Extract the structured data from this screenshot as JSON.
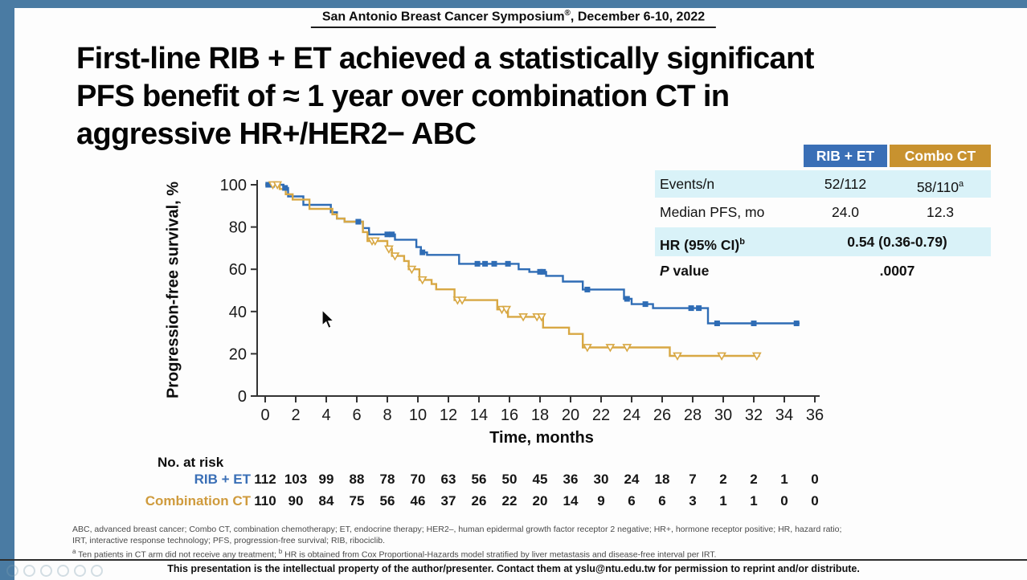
{
  "header": {
    "text_main": "San Antonio Breast Cancer Symposium",
    "text_sup": "®",
    "text_rest": ", December 6-10, 2022"
  },
  "title": {
    "lines": [
      "First-line RIB + ET achieved a statistically significant",
      "PFS benefit of ≈ 1 year over combination CT in",
      "aggressive HR+/HER2− ABC"
    ]
  },
  "stats_table": {
    "columns": [
      {
        "label": "RIB + ET",
        "color": "#3a6fb6"
      },
      {
        "label": "Combo CT",
        "color": "#c8922f"
      }
    ],
    "rows": [
      {
        "label": "Events/n",
        "v1": "52/112",
        "v2": "58/110",
        "v2_sup": "a"
      },
      {
        "label": "Median PFS, mo",
        "v1": "24.0",
        "v2": "12.3"
      },
      {
        "label": "HR (95% CI)",
        "label_sup": "b",
        "span": "0.54 (0.36-0.79)"
      },
      {
        "label_italic": "P",
        "label": " value",
        "span": ".0007"
      }
    ]
  },
  "chart_data": {
    "type": "line",
    "subtype": "kaplan-meier-step",
    "title": "",
    "xlabel": "Time, months",
    "ylabel": "Progression-free survival, %",
    "xlim": [
      0,
      36
    ],
    "ylim": [
      0,
      100
    ],
    "xticks": [
      0,
      2,
      4,
      6,
      8,
      10,
      12,
      14,
      16,
      18,
      20,
      22,
      24,
      26,
      28,
      30,
      32,
      34,
      36
    ],
    "yticks": [
      0,
      20,
      40,
      60,
      80,
      100
    ],
    "grid": false,
    "legend_position": "none",
    "series": [
      {
        "name": "RIB + ET",
        "color": "#2e6cb5",
        "marker": "filled-square",
        "median_pfs_months": 24.0,
        "steps": [
          [
            0,
            100
          ],
          [
            1.2,
            100
          ],
          [
            1.2,
            98.5
          ],
          [
            1.5,
            98.5
          ],
          [
            1.5,
            94.5
          ],
          [
            2.5,
            94.5
          ],
          [
            2.5,
            90.5
          ],
          [
            4.3,
            90.5
          ],
          [
            4.3,
            87
          ],
          [
            4.7,
            87
          ],
          [
            4.7,
            84
          ],
          [
            5.2,
            84
          ],
          [
            5.2,
            82.5
          ],
          [
            6.4,
            82.5
          ],
          [
            6.4,
            79.5
          ],
          [
            6.8,
            79.5
          ],
          [
            6.8,
            76.5
          ],
          [
            8.5,
            76.5
          ],
          [
            8.5,
            74
          ],
          [
            9.9,
            74
          ],
          [
            9.9,
            70.5
          ],
          [
            10.2,
            70.5
          ],
          [
            10.2,
            68
          ],
          [
            10.6,
            68
          ],
          [
            10.6,
            66.8
          ],
          [
            12.7,
            66.8
          ],
          [
            12.7,
            62.6
          ],
          [
            16.6,
            62.6
          ],
          [
            16.6,
            60
          ],
          [
            17.3,
            60
          ],
          [
            17.3,
            58.8
          ],
          [
            18.4,
            58.8
          ],
          [
            18.4,
            56.9
          ],
          [
            19.5,
            56.9
          ],
          [
            19.5,
            54.2
          ],
          [
            20.8,
            54.2
          ],
          [
            20.8,
            50.4
          ],
          [
            23.5,
            50.4
          ],
          [
            23.5,
            46
          ],
          [
            24,
            46
          ],
          [
            24,
            43.5
          ],
          [
            25.4,
            43.5
          ],
          [
            25.4,
            41.6
          ],
          [
            29,
            41.6
          ],
          [
            29,
            34.4
          ],
          [
            35,
            34.4
          ]
        ]
      },
      {
        "name": "Combination CT",
        "color": "#d8a844",
        "marker": "open-triangle-down",
        "median_pfs_months": 12.3,
        "steps": [
          [
            0,
            100
          ],
          [
            0.95,
            100
          ],
          [
            0.95,
            98
          ],
          [
            1.35,
            98
          ],
          [
            1.35,
            95.5
          ],
          [
            1.8,
            95.5
          ],
          [
            1.8,
            93
          ],
          [
            2.9,
            93
          ],
          [
            2.9,
            88.6
          ],
          [
            4.4,
            88.6
          ],
          [
            4.4,
            86
          ],
          [
            4.7,
            86
          ],
          [
            4.7,
            84
          ],
          [
            5.2,
            84
          ],
          [
            5.2,
            82.5
          ],
          [
            6.4,
            82.5
          ],
          [
            6.4,
            77.6
          ],
          [
            6.7,
            77.6
          ],
          [
            6.7,
            73.4
          ],
          [
            8,
            73.4
          ],
          [
            8,
            69.6
          ],
          [
            8.3,
            69.6
          ],
          [
            8.3,
            66.3
          ],
          [
            9.1,
            66.3
          ],
          [
            9.1,
            63.9
          ],
          [
            9.4,
            63.9
          ],
          [
            9.4,
            60
          ],
          [
            10.1,
            60
          ],
          [
            10.1,
            55
          ],
          [
            10.9,
            55
          ],
          [
            10.9,
            53
          ],
          [
            11.2,
            53
          ],
          [
            11.2,
            50.5
          ],
          [
            12.4,
            50.5
          ],
          [
            12.4,
            45.4
          ],
          [
            15.2,
            45.4
          ],
          [
            15.2,
            41
          ],
          [
            15.9,
            41
          ],
          [
            15.9,
            37.5
          ],
          [
            18.2,
            37.5
          ],
          [
            18.2,
            32.4
          ],
          [
            19.9,
            32.4
          ],
          [
            19.9,
            29.4
          ],
          [
            20.8,
            29.4
          ],
          [
            20.8,
            23
          ],
          [
            26.5,
            23
          ],
          [
            26.5,
            19
          ],
          [
            32.4,
            19
          ]
        ]
      }
    ],
    "censor_markers": {
      "RIB + ET": [
        [
          0.2,
          100
        ],
        [
          0.45,
          100
        ],
        [
          1.3,
          98.5
        ],
        [
          6.1,
          82.5
        ],
        [
          8.0,
          76.5
        ],
        [
          8.3,
          76.5
        ],
        [
          10.3,
          68
        ],
        [
          13.9,
          62.6
        ],
        [
          14.4,
          62.6
        ],
        [
          15.0,
          62.6
        ],
        [
          15.9,
          62.6
        ],
        [
          18.0,
          58.8
        ],
        [
          18.2,
          58.8
        ],
        [
          21.1,
          50.4
        ],
        [
          23.7,
          46
        ],
        [
          24.9,
          43.5
        ],
        [
          27.9,
          41.6
        ],
        [
          28.4,
          41.6
        ],
        [
          29.6,
          34.4
        ],
        [
          32.0,
          34.4
        ],
        [
          34.8,
          34.4
        ]
      ],
      "Combination CT": [
        [
          0.5,
          100
        ],
        [
          0.8,
          100
        ],
        [
          7.0,
          73.4
        ],
        [
          7.2,
          73.4
        ],
        [
          8.1,
          69.6
        ],
        [
          8.5,
          66.3
        ],
        [
          9.6,
          60
        ],
        [
          10.3,
          55
        ],
        [
          12.6,
          45.4
        ],
        [
          12.9,
          45.4
        ],
        [
          15.5,
          41
        ],
        [
          15.8,
          41
        ],
        [
          16.9,
          37.5
        ],
        [
          17.8,
          37.5
        ],
        [
          18.1,
          37.5
        ],
        [
          21.1,
          23
        ],
        [
          22.6,
          23
        ],
        [
          23.7,
          23
        ],
        [
          27.0,
          19
        ],
        [
          29.9,
          19
        ],
        [
          32.2,
          19
        ]
      ]
    },
    "at_risk": {
      "label": "No. at risk",
      "times": [
        0,
        2,
        4,
        6,
        8,
        10,
        12,
        14,
        16,
        18,
        20,
        22,
        24,
        26,
        28,
        30,
        32,
        34,
        36
      ],
      "rows": [
        {
          "name": "RIB + ET",
          "color": "#3a6fb6",
          "values": [
            112,
            103,
            99,
            88,
            78,
            70,
            63,
            56,
            50,
            45,
            36,
            30,
            24,
            18,
            7,
            2,
            2,
            1,
            0
          ]
        },
        {
          "name": "Combination CT",
          "color": "#cf9b3d",
          "values": [
            110,
            90,
            84,
            75,
            56,
            46,
            37,
            26,
            22,
            20,
            14,
            9,
            6,
            6,
            3,
            1,
            1,
            0,
            0
          ]
        }
      ]
    }
  },
  "footnotes": {
    "line1": "ABC, advanced breast cancer; Combo CT, combination chemotherapy; ET, endocrine therapy; HER2–, human epidermal growth factor receptor 2 negative; HR+, hormone receptor positive; HR, hazard ratio;",
    "line2": "IRT, interactive response technology; PFS, progression-free survival; RIB, ribociclib.",
    "sup_a": "a",
    "line3a": " Ten patients in CT arm did not receive any treatment; ",
    "sup_b": "b",
    "line3b": " HR is obtained from Cox Proportional-Hazards model stratified by liver metastasis and disease-free interval per IRT."
  },
  "footer": {
    "text": "This presentation is the intellectual property of the author/presenter. Contact them at yslu@ntu.edu.tw for permission to reprint and/or distribute."
  },
  "colors": {
    "frame": "#4a7ba3",
    "row_highlight": "#d9f2f8",
    "rib_blue": "#2e6cb5",
    "combo_gold_header": "#c8922f",
    "combo_gold_curve": "#d8a844"
  }
}
